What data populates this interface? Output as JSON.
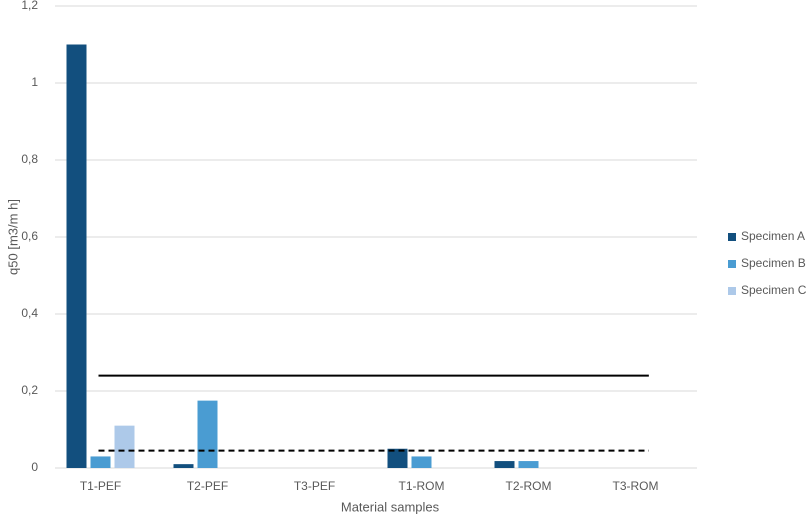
{
  "chart_data": {
    "type": "bar",
    "x_label": "Material samples",
    "y_label": "q50 [m3/m h]",
    "categories": [
      "T1-PEF",
      "T2-PEF",
      "T3-PEF",
      "T1-ROM",
      "T2-ROM",
      "T3-ROM"
    ],
    "series": [
      {
        "name": "Specimen A",
        "color": "#124f7e",
        "values": [
          1.1,
          0.01,
          0,
          0.05,
          0.018,
          0
        ]
      },
      {
        "name": "Specimen B",
        "color": "#4a9cd2",
        "values": [
          0.03,
          0.175,
          0,
          0.03,
          0.018,
          0
        ]
      },
      {
        "name": "Specimen C",
        "color": "#adc9e9",
        "values": [
          0.11,
          0,
          0,
          0,
          0,
          0
        ]
      }
    ],
    "reference_lines": [
      {
        "value": 0.24,
        "style": "solid",
        "color": "#000000"
      },
      {
        "value": 0.045,
        "style": "dashed",
        "color": "#000000"
      }
    ],
    "ylim": [
      0,
      1.2
    ],
    "yticks": [
      0,
      {
        "value": 0.2,
        "label": "0,2"
      },
      {
        "value": 0.4,
        "label": "0,4"
      },
      {
        "value": 0.6,
        "label": "0,6"
      },
      {
        "value": 0.8,
        "label": "0,8"
      },
      1,
      {
        "value": 1.2,
        "label": "1,2"
      }
    ],
    "grid": true,
    "legend": "right"
  }
}
